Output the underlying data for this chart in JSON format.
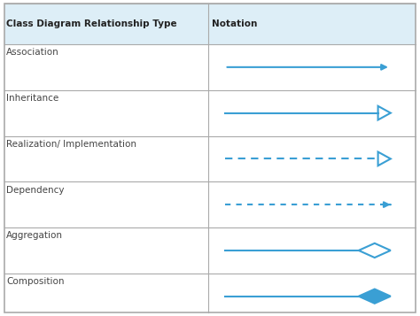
{
  "col1_header": "Class Diagram Relationship Type",
  "col2_header": "Notation",
  "rows": [
    {
      "label": "Association",
      "type": "solid_arrow"
    },
    {
      "label": "Inheritance",
      "type": "solid_open_triangle"
    },
    {
      "label": "Realization/ Implementation",
      "type": "dashed_open_triangle"
    },
    {
      "label": "Dependency",
      "type": "dashed_arrow"
    },
    {
      "label": "Aggregation",
      "type": "solid_diamond_open"
    },
    {
      "label": "Composition",
      "type": "solid_diamond_filled"
    }
  ],
  "line_color": "#3a9fd4",
  "header_bg": "#ddeef7",
  "border_color": "#aaaaaa",
  "text_color_label": "#444444",
  "text_color_header": "#222222",
  "col_split": 0.495,
  "figsize": [
    4.74,
    3.57
  ],
  "dpi": 100
}
